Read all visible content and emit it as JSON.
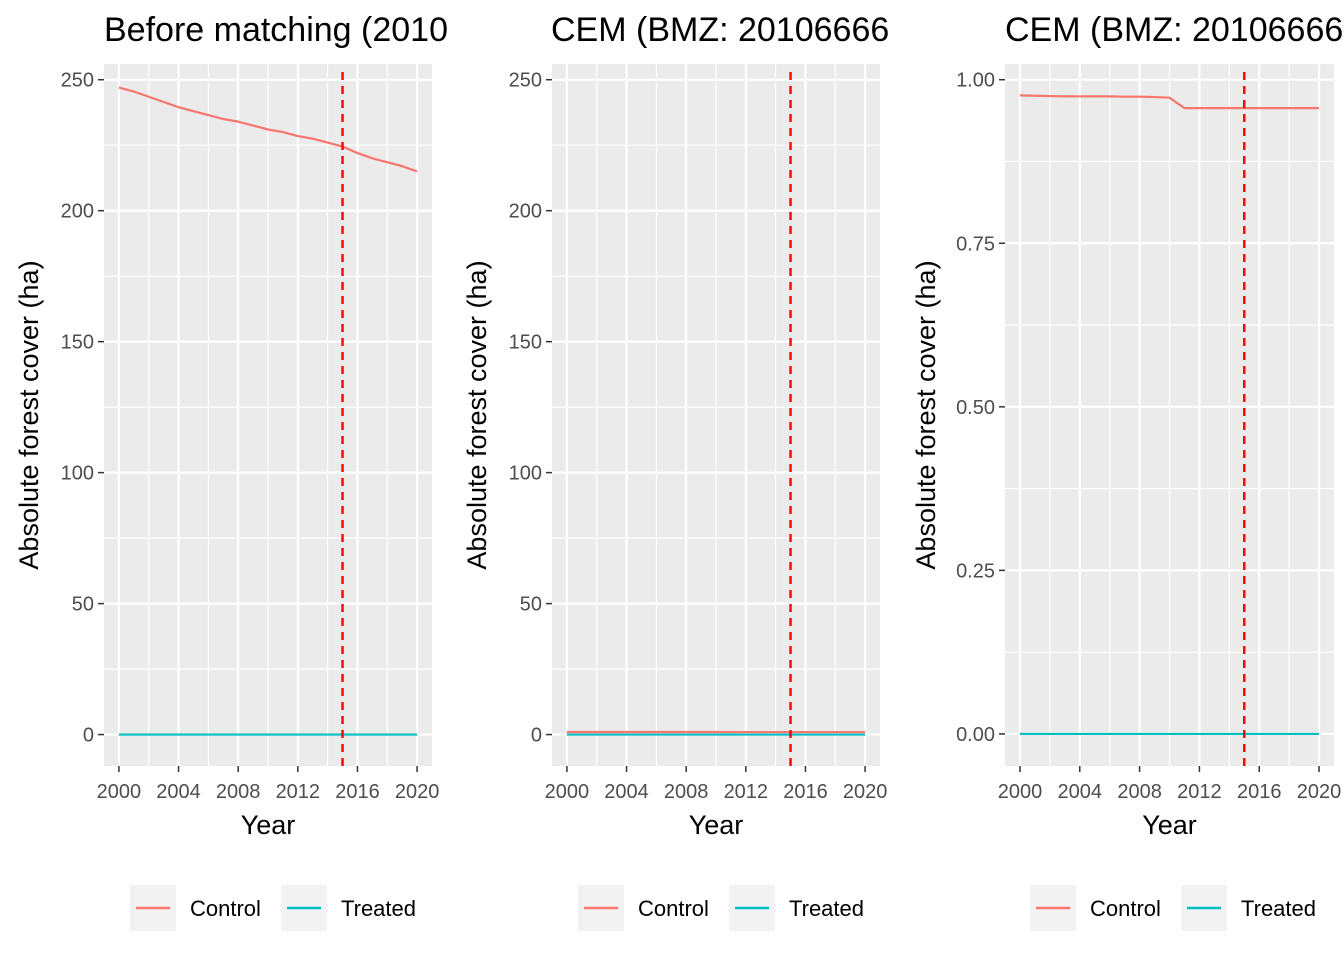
{
  "chart_data": [
    {
      "type": "line",
      "title": "Before matching (2010",
      "xlabel": "Year",
      "ylabel": "Absolute forest cover (ha)",
      "xlim": [
        1999,
        2021
      ],
      "ylim": [
        -12,
        256
      ],
      "xticks": [
        2000,
        2004,
        2008,
        2012,
        2016,
        2020
      ],
      "xtick_labels": [
        "2000",
        "2004",
        "2008",
        "2012",
        "2016",
        "2020"
      ],
      "yticks": [
        0,
        50,
        100,
        150,
        200,
        250
      ],
      "ytick_labels": [
        "0",
        "50",
        "100",
        "150",
        "200",
        "250"
      ],
      "vline": {
        "x": 2015,
        "color": "#ff0000",
        "style": "dashed"
      },
      "grid": true,
      "legend_position": "bottom",
      "x": [
        2000,
        2001,
        2002,
        2003,
        2004,
        2005,
        2006,
        2007,
        2008,
        2009,
        2010,
        2011,
        2012,
        2013,
        2014,
        2015,
        2016,
        2017,
        2018,
        2019,
        2020
      ],
      "series": [
        {
          "name": "Control",
          "color": "#f8766d",
          "values": [
            247,
            245.5,
            243.5,
            241.5,
            239.5,
            238,
            236.5,
            235,
            234,
            232.5,
            231,
            230,
            228.5,
            227.5,
            226,
            224.5,
            222,
            220,
            218.5,
            217,
            215
          ]
        },
        {
          "name": "Treated",
          "color": "#00bfc4",
          "values": [
            0,
            0,
            0,
            0,
            0,
            0,
            0,
            0,
            0,
            0,
            0,
            0,
            0,
            0,
            0,
            0,
            0,
            0,
            0,
            0,
            0
          ]
        }
      ]
    },
    {
      "type": "line",
      "title": "CEM (BMZ: 20106666",
      "xlabel": "Year",
      "ylabel": "Absolute forest cover (ha)",
      "xlim": [
        1999,
        2021
      ],
      "ylim": [
        -12,
        256
      ],
      "xticks": [
        2000,
        2004,
        2008,
        2012,
        2016,
        2020
      ],
      "xtick_labels": [
        "2000",
        "2004",
        "2008",
        "2012",
        "2016",
        "2020"
      ],
      "yticks": [
        0,
        50,
        100,
        150,
        200,
        250
      ],
      "ytick_labels": [
        "0",
        "50",
        "100",
        "150",
        "200",
        "250"
      ],
      "vline": {
        "x": 2015,
        "color": "#ff0000",
        "style": "dashed"
      },
      "grid": true,
      "legend_position": "bottom",
      "x": [
        2000,
        2001,
        2002,
        2003,
        2004,
        2005,
        2006,
        2007,
        2008,
        2009,
        2010,
        2011,
        2012,
        2013,
        2014,
        2015,
        2016,
        2017,
        2018,
        2019,
        2020
      ],
      "series": [
        {
          "name": "Control",
          "color": "#f8766d",
          "values": [
            0.98,
            0.98,
            0.98,
            0.98,
            0.98,
            0.98,
            0.98,
            0.97,
            0.97,
            0.97,
            0.97,
            0.96,
            0.96,
            0.96,
            0.96,
            0.96,
            0.96,
            0.96,
            0.96,
            0.96,
            0.96
          ]
        },
        {
          "name": "Treated",
          "color": "#00bfc4",
          "values": [
            0,
            0,
            0,
            0,
            0,
            0,
            0,
            0,
            0,
            0,
            0,
            0,
            0,
            0,
            0,
            0,
            0,
            0,
            0,
            0,
            0
          ]
        }
      ]
    },
    {
      "type": "line",
      "title": "CEM (BMZ: 20106666",
      "xlabel": "Year",
      "ylabel": "Absolute forest cover (ha)",
      "xlim": [
        1999,
        2021
      ],
      "ylim": [
        -0.049,
        1.024
      ],
      "xticks": [
        2000,
        2004,
        2008,
        2012,
        2016,
        2020
      ],
      "xtick_labels": [
        "2000",
        "2004",
        "2008",
        "2012",
        "2016",
        "2020"
      ],
      "yticks": [
        0,
        0.25,
        0.5,
        0.75,
        1.0
      ],
      "ytick_labels": [
        "0.00",
        "0.25",
        "0.50",
        "0.75",
        "1.00"
      ],
      "vline": {
        "x": 2015,
        "color": "#ff0000",
        "style": "dashed"
      },
      "grid": true,
      "legend_position": "bottom",
      "x": [
        2000,
        2001,
        2002,
        2003,
        2004,
        2005,
        2006,
        2007,
        2008,
        2009,
        2010,
        2011,
        2012,
        2013,
        2014,
        2015,
        2016,
        2017,
        2018,
        2019,
        2020
      ],
      "series": [
        {
          "name": "Control",
          "color": "#f8766d",
          "values": [
            0.976,
            0.9755,
            0.975,
            0.9745,
            0.9745,
            0.9745,
            0.9745,
            0.974,
            0.974,
            0.9735,
            0.9725,
            0.9565,
            0.9565,
            0.9565,
            0.9565,
            0.9565,
            0.9565,
            0.9565,
            0.9565,
            0.9565,
            0.9565
          ]
        },
        {
          "name": "Treated",
          "color": "#00bfc4",
          "values": [
            0,
            0,
            0,
            0,
            0,
            0,
            0,
            0,
            0,
            0,
            0,
            0,
            0,
            0,
            0,
            0,
            0,
            0,
            0,
            0,
            0
          ]
        }
      ]
    }
  ]
}
